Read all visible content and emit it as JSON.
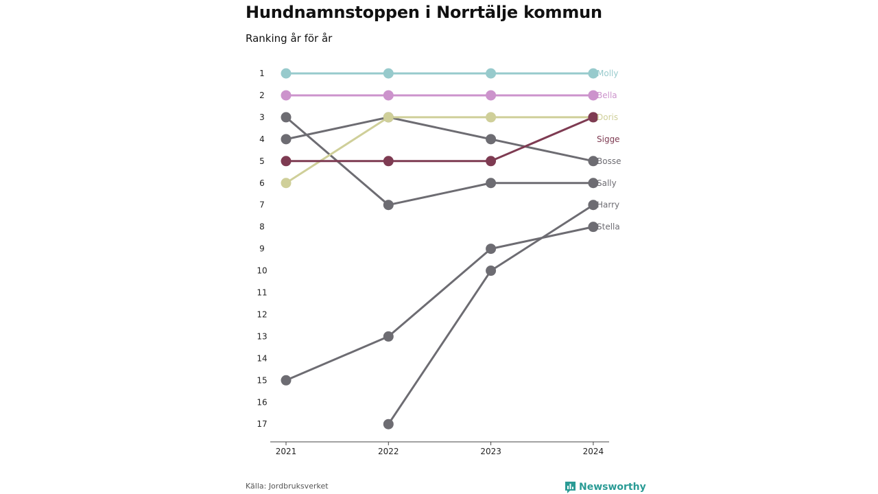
{
  "header": {
    "title": "Hundnamnstoppen i Norrtälje kommun",
    "subtitle": "Ranking år för år"
  },
  "footer": {
    "source": "Källa: Jordbruksverket",
    "brand": "Newsworthy",
    "brand_icon": "newsworthy-logo-icon"
  },
  "colors": {
    "grey_series": "#6d6c72",
    "accent_teal": "#2a9b95"
  },
  "chart_data": {
    "type": "line",
    "subtype": "bump",
    "title": "Hundnamnstoppen i Norrtälje kommun",
    "subtitle": "Ranking år för år",
    "x": [
      "2021",
      "2022",
      "2023",
      "2024"
    ],
    "y_ticks": [
      1,
      2,
      3,
      4,
      5,
      6,
      7,
      8,
      9,
      10,
      11,
      12,
      13,
      14,
      15,
      16,
      17
    ],
    "y_range": [
      1,
      17
    ],
    "y_inverted": true,
    "grid": false,
    "legend": "end labels at right",
    "series": [
      {
        "name": "Molly",
        "values": [
          1,
          1,
          1,
          1
        ],
        "color": "#97cacc"
      },
      {
        "name": "Bella",
        "values": [
          2,
          2,
          2,
          2
        ],
        "color": "#cc93cc"
      },
      {
        "name": "Doris",
        "values": [
          6,
          3,
          3,
          3
        ],
        "color": "#cfcf99"
      },
      {
        "name": "Sigge",
        "values": [
          5,
          5,
          5,
          3
        ],
        "color": "#7e3b52"
      },
      {
        "name": "Bosse",
        "values": [
          4,
          3,
          4,
          5
        ],
        "color": "#6d6c72"
      },
      {
        "name": "Sally",
        "values": [
          3,
          7,
          6,
          6
        ],
        "color": "#6d6c72"
      },
      {
        "name": "Harry",
        "values": [
          null,
          17,
          10,
          7
        ],
        "color": "#6d6c72"
      },
      {
        "name": "Stella",
        "values": [
          15,
          13,
          9,
          8
        ],
        "color": "#6d6c72"
      }
    ]
  }
}
